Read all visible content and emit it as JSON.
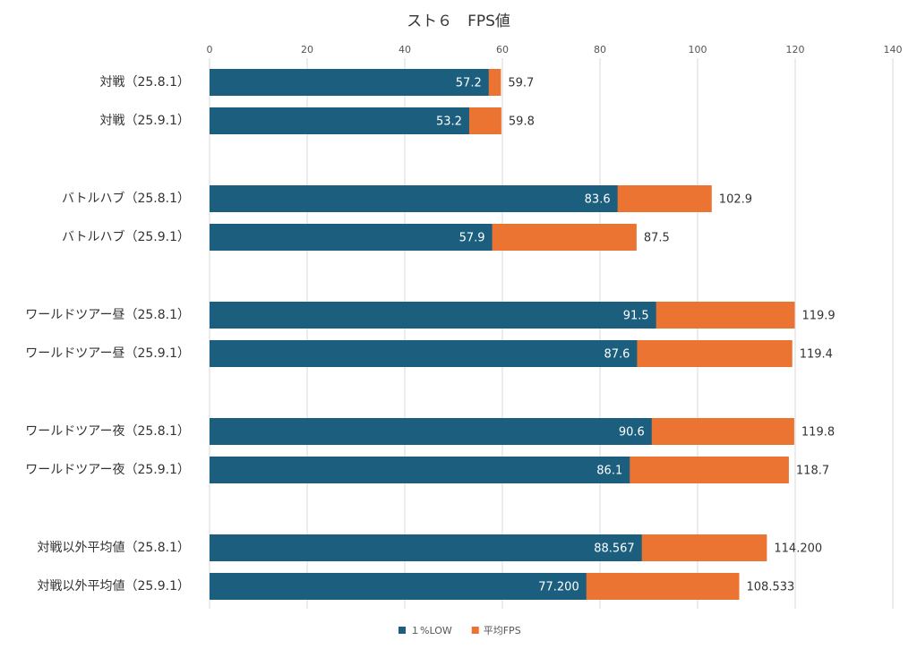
{
  "chart_data": {
    "type": "bar",
    "orientation": "horizontal",
    "title": "スト６　FPS値",
    "categories": [
      "対戦（25.8.1）",
      "対戦（25.9.1）",
      "バトルハブ（25.8.1）",
      "バトルハブ（25.9.1）",
      "ワールドツアー昼（25.8.1）",
      "ワールドツアー昼（25.9.1）",
      "ワールドツアー夜（25.8.1）",
      "ワールドツアー夜（25.9.1）",
      "対戦以外平均値（25.8.1）",
      "対戦以外平均値（25.9.1）"
    ],
    "series": [
      {
        "name": "平均FPS",
        "color": "#eb7433",
        "values": [
          59.7,
          59.8,
          102.9,
          87.5,
          119.9,
          119.4,
          119.8,
          118.7,
          114.2,
          108.533
        ],
        "value_labels": [
          "59.7",
          "59.8",
          "102.9",
          "87.5",
          "119.9",
          "119.4",
          "119.8",
          "118.7",
          "114.200",
          "108.533"
        ]
      },
      {
        "name": "１%LOW",
        "color": "#1b5e7d",
        "values": [
          57.2,
          53.2,
          83.6,
          57.9,
          91.5,
          87.6,
          90.6,
          86.1,
          88.567,
          77.2
        ],
        "value_labels": [
          "57.2",
          "53.2",
          "83.6",
          "57.9",
          "91.5",
          "87.6",
          "90.6",
          "86.1",
          "88.567",
          "77.200"
        ]
      }
    ],
    "xlim": [
      0,
      140
    ],
    "xticks": [
      0,
      20,
      40,
      60,
      80,
      100,
      120,
      140
    ],
    "grid": true,
    "legend": "bottom"
  }
}
